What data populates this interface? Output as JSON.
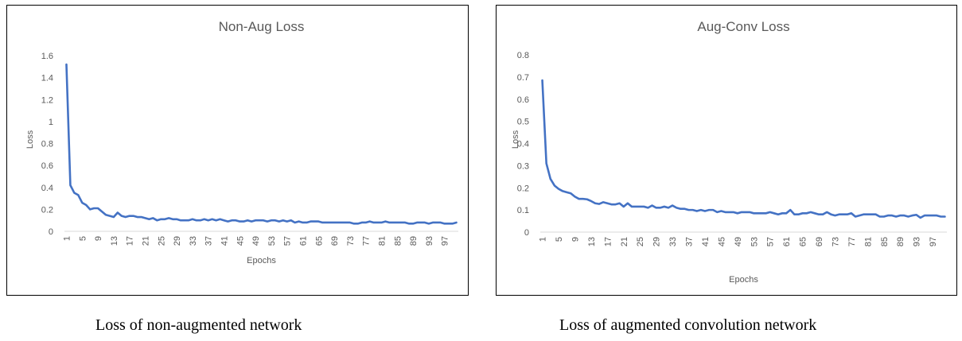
{
  "chart_data": [
    {
      "type": "line",
      "title": "Non-Aug Loss",
      "xlabel": "Epochs",
      "ylabel": "Loss",
      "ylim": [
        0,
        1.6
      ],
      "yticks": [
        "0",
        "0.2",
        "0.4",
        "0.6",
        "0.8",
        "1",
        "1.2",
        "1.4",
        "1.6"
      ],
      "xticks": [
        "1",
        "5",
        "9",
        "13",
        "17",
        "21",
        "25",
        "29",
        "33",
        "37",
        "41",
        "45",
        "49",
        "53",
        "57",
        "61",
        "65",
        "69",
        "73",
        "77",
        "81",
        "85",
        "89",
        "93",
        "97"
      ],
      "grid": false,
      "series": [
        {
          "color": "#4472c4",
          "x": [
            1,
            2,
            3,
            4,
            5,
            6,
            7,
            8,
            9,
            10,
            11,
            12,
            13,
            14,
            15,
            16,
            17,
            18,
            19,
            20,
            21,
            22,
            23,
            24,
            25,
            26,
            27,
            28,
            29,
            30,
            31,
            32,
            33,
            34,
            35,
            36,
            37,
            38,
            39,
            40,
            41,
            42,
            43,
            44,
            45,
            46,
            47,
            48,
            49,
            50,
            51,
            52,
            53,
            54,
            55,
            56,
            57,
            58,
            59,
            60,
            61,
            62,
            63,
            64,
            65,
            66,
            67,
            68,
            69,
            70,
            71,
            72,
            73,
            74,
            75,
            76,
            77,
            78,
            79,
            80,
            81,
            82,
            83,
            84,
            85,
            86,
            87,
            88,
            89,
            90,
            91,
            92,
            93,
            94,
            95,
            96,
            97,
            98,
            99,
            100
          ],
          "values": [
            1.52,
            0.42,
            0.35,
            0.33,
            0.26,
            0.24,
            0.2,
            0.21,
            0.21,
            0.18,
            0.15,
            0.14,
            0.13,
            0.17,
            0.14,
            0.13,
            0.14,
            0.14,
            0.13,
            0.13,
            0.12,
            0.11,
            0.12,
            0.1,
            0.11,
            0.11,
            0.12,
            0.11,
            0.11,
            0.1,
            0.1,
            0.1,
            0.11,
            0.1,
            0.1,
            0.11,
            0.1,
            0.11,
            0.1,
            0.11,
            0.1,
            0.09,
            0.1,
            0.1,
            0.09,
            0.09,
            0.1,
            0.09,
            0.1,
            0.1,
            0.1,
            0.09,
            0.1,
            0.1,
            0.09,
            0.1,
            0.09,
            0.1,
            0.08,
            0.09,
            0.08,
            0.08,
            0.09,
            0.09,
            0.09,
            0.08,
            0.08,
            0.08,
            0.08,
            0.08,
            0.08,
            0.08,
            0.08,
            0.07,
            0.07,
            0.08,
            0.08,
            0.09,
            0.08,
            0.08,
            0.08,
            0.09,
            0.08,
            0.08,
            0.08,
            0.08,
            0.08,
            0.07,
            0.07,
            0.08,
            0.08,
            0.08,
            0.07,
            0.08,
            0.08,
            0.08,
            0.07,
            0.07,
            0.07,
            0.08
          ]
        }
      ]
    },
    {
      "type": "line",
      "title": "Aug-Conv Loss",
      "xlabel": "Epochs",
      "ylabel": "Loss",
      "ylim": [
        0,
        0.8
      ],
      "yticks": [
        "0",
        "0.1",
        "0.2",
        "0.3",
        "0.4",
        "0.5",
        "0.6",
        "0.7",
        "0.8"
      ],
      "xticks": [
        "1",
        "5",
        "9",
        "13",
        "17",
        "21",
        "25",
        "29",
        "33",
        "37",
        "41",
        "45",
        "49",
        "53",
        "57",
        "61",
        "65",
        "69",
        "73",
        "77",
        "81",
        "85",
        "89",
        "93",
        "97"
      ],
      "grid": false,
      "series": [
        {
          "color": "#4472c4",
          "x": [
            1,
            2,
            3,
            4,
            5,
            6,
            7,
            8,
            9,
            10,
            11,
            12,
            13,
            14,
            15,
            16,
            17,
            18,
            19,
            20,
            21,
            22,
            23,
            24,
            25,
            26,
            27,
            28,
            29,
            30,
            31,
            32,
            33,
            34,
            35,
            36,
            37,
            38,
            39,
            40,
            41,
            42,
            43,
            44,
            45,
            46,
            47,
            48,
            49,
            50,
            51,
            52,
            53,
            54,
            55,
            56,
            57,
            58,
            59,
            60,
            61,
            62,
            63,
            64,
            65,
            66,
            67,
            68,
            69,
            70,
            71,
            72,
            73,
            74,
            75,
            76,
            77,
            78,
            79,
            80,
            81,
            82,
            83,
            84,
            85,
            86,
            87,
            88,
            89,
            90,
            91,
            92,
            93,
            94,
            95,
            96,
            97,
            98,
            99,
            100
          ],
          "values": [
            0.685,
            0.31,
            0.24,
            0.21,
            0.195,
            0.185,
            0.18,
            0.175,
            0.16,
            0.15,
            0.15,
            0.148,
            0.14,
            0.13,
            0.127,
            0.135,
            0.13,
            0.125,
            0.125,
            0.13,
            0.115,
            0.13,
            0.115,
            0.115,
            0.115,
            0.115,
            0.11,
            0.12,
            0.11,
            0.11,
            0.115,
            0.11,
            0.12,
            0.11,
            0.105,
            0.105,
            0.1,
            0.1,
            0.095,
            0.1,
            0.095,
            0.1,
            0.1,
            0.09,
            0.095,
            0.09,
            0.09,
            0.09,
            0.085,
            0.09,
            0.09,
            0.09,
            0.085,
            0.085,
            0.085,
            0.085,
            0.09,
            0.085,
            0.08,
            0.085,
            0.085,
            0.1,
            0.08,
            0.08,
            0.085,
            0.085,
            0.09,
            0.085,
            0.08,
            0.08,
            0.09,
            0.08,
            0.075,
            0.08,
            0.08,
            0.08,
            0.085,
            0.07,
            0.075,
            0.08,
            0.08,
            0.08,
            0.08,
            0.07,
            0.07,
            0.075,
            0.075,
            0.07,
            0.075,
            0.075,
            0.07,
            0.075,
            0.078,
            0.065,
            0.075,
            0.075,
            0.075,
            0.075,
            0.07,
            0.07
          ]
        }
      ]
    }
  ],
  "captions": {
    "left": "Loss of non-augmented network",
    "right": "Loss of augmented convolution network"
  }
}
